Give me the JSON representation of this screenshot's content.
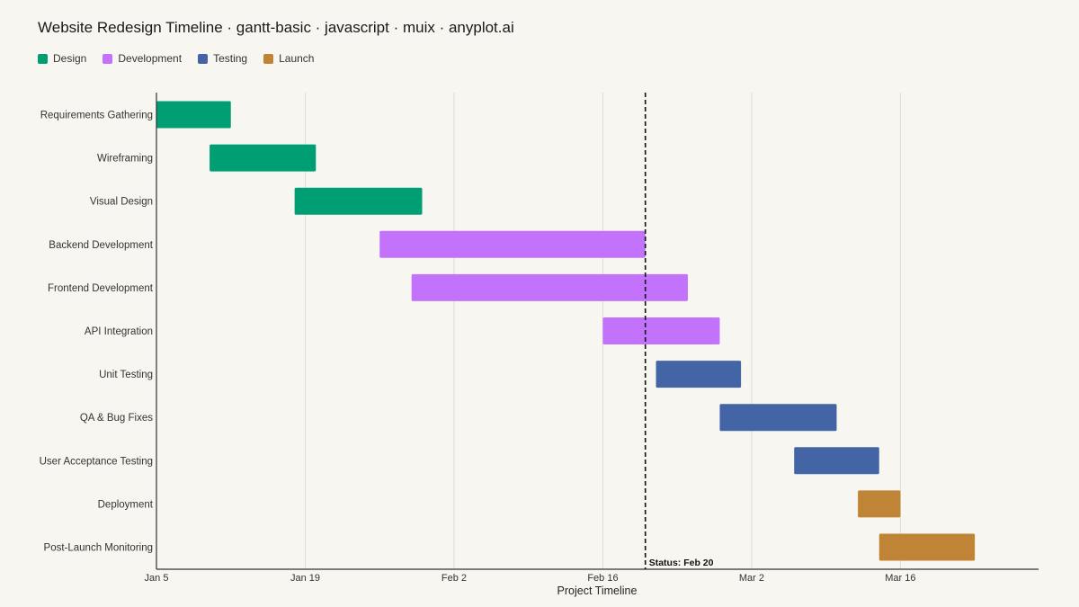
{
  "header": {
    "title": "Website Redesign Timeline · gantt-basic · javascript · muix · anyplot.ai"
  },
  "legend": [
    {
      "label": "Design",
      "color": "#009e73"
    },
    {
      "label": "Development",
      "color": "#c373fb"
    },
    {
      "label": "Testing",
      "color": "#4465a5"
    },
    {
      "label": "Launch",
      "color": "#bf8435"
    }
  ],
  "chart_data": {
    "type": "bar",
    "orientation": "horizontal-gantt",
    "xlabel": "Project Timeline",
    "x_ticks": [
      "Jan 5",
      "Jan 19",
      "Feb 2",
      "Feb 16",
      "Mar 2",
      "Mar 16"
    ],
    "xlim": [
      "Jan 5",
      "Apr 1"
    ],
    "grid": "vertical",
    "legend_position": "top-left",
    "status_line": {
      "date": "Feb 20",
      "label": "Status: Feb 20"
    },
    "tasks": [
      {
        "name": "Requirements Gathering",
        "phase": "Design",
        "start": "Jan 5",
        "end": "Jan 12"
      },
      {
        "name": "Wireframing",
        "phase": "Design",
        "start": "Jan 10",
        "end": "Jan 20"
      },
      {
        "name": "Visual Design",
        "phase": "Design",
        "start": "Jan 18",
        "end": "Jan 30"
      },
      {
        "name": "Backend Development",
        "phase": "Development",
        "start": "Jan 26",
        "end": "Feb 20"
      },
      {
        "name": "Frontend Development",
        "phase": "Development",
        "start": "Jan 29",
        "end": "Feb 24"
      },
      {
        "name": "API Integration",
        "phase": "Development",
        "start": "Feb 16",
        "end": "Feb 27"
      },
      {
        "name": "Unit Testing",
        "phase": "Testing",
        "start": "Feb 21",
        "end": "Mar 1"
      },
      {
        "name": "QA & Bug Fixes",
        "phase": "Testing",
        "start": "Feb 27",
        "end": "Mar 10"
      },
      {
        "name": "User Acceptance Testing",
        "phase": "Testing",
        "start": "Mar 6",
        "end": "Mar 14"
      },
      {
        "name": "Deployment",
        "phase": "Launch",
        "start": "Mar 12",
        "end": "Mar 16"
      },
      {
        "name": "Post-Launch Monitoring",
        "phase": "Launch",
        "start": "Mar 14",
        "end": "Mar 23"
      }
    ]
  }
}
